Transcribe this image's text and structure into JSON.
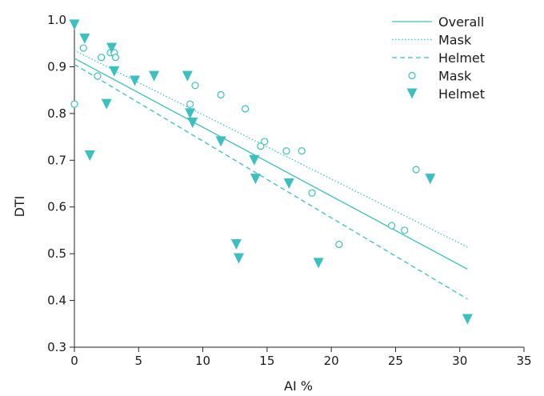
{
  "chart_data": {
    "type": "scatter",
    "xlabel": "AI %",
    "ylabel": "DTI",
    "xlim": [
      0,
      35
    ],
    "ylim": [
      0.3,
      1.0
    ],
    "xticks": [
      0,
      5,
      10,
      15,
      20,
      25,
      30,
      35
    ],
    "yticks": [
      0.3,
      0.4,
      0.5,
      0.6,
      0.7,
      0.8,
      0.9,
      1.0
    ],
    "xtick_labels": [
      "0",
      "5",
      "10",
      "15",
      "20",
      "25",
      "30",
      "35"
    ],
    "ytick_labels": [
      "0.3",
      "0.4",
      "0.5",
      "0.6",
      "0.7",
      "0.8",
      "0.9",
      "1.0"
    ],
    "grid": false,
    "legend_position": "top-right",
    "color": "#3cbfbf",
    "series": [
      {
        "name": "Mask",
        "marker": "open-circle",
        "points": [
          [
            0.0,
            0.82
          ],
          [
            0.7,
            0.94
          ],
          [
            1.8,
            0.88
          ],
          [
            2.1,
            0.92
          ],
          [
            2.8,
            0.93
          ],
          [
            3.1,
            0.93
          ],
          [
            3.2,
            0.92
          ],
          [
            9.0,
            0.82
          ],
          [
            9.4,
            0.86
          ],
          [
            11.4,
            0.84
          ],
          [
            13.3,
            0.81
          ],
          [
            14.5,
            0.73
          ],
          [
            14.8,
            0.74
          ],
          [
            16.5,
            0.72
          ],
          [
            17.7,
            0.72
          ],
          [
            18.5,
            0.63
          ],
          [
            20.6,
            0.52
          ],
          [
            24.7,
            0.56
          ],
          [
            25.7,
            0.55
          ],
          [
            26.6,
            0.68
          ]
        ]
      },
      {
        "name": "Helmet",
        "marker": "filled-triangle-down",
        "points": [
          [
            0.0,
            0.99
          ],
          [
            0.8,
            0.96
          ],
          [
            1.2,
            0.71
          ],
          [
            2.5,
            0.82
          ],
          [
            2.9,
            0.94
          ],
          [
            3.1,
            0.89
          ],
          [
            4.7,
            0.87
          ],
          [
            6.2,
            0.88
          ],
          [
            8.8,
            0.88
          ],
          [
            9.0,
            0.8
          ],
          [
            9.2,
            0.78
          ],
          [
            11.4,
            0.74
          ],
          [
            12.6,
            0.52
          ],
          [
            12.8,
            0.49
          ],
          [
            14.0,
            0.7
          ],
          [
            14.1,
            0.66
          ],
          [
            16.7,
            0.65
          ],
          [
            19.0,
            0.48
          ],
          [
            27.7,
            0.66
          ],
          [
            30.6,
            0.36
          ]
        ]
      }
    ],
    "fit_lines": [
      {
        "name": "Overall",
        "style": "solid",
        "x": [
          0,
          30.6
        ],
        "y": [
          0.918,
          0.467
        ]
      },
      {
        "name": "Mask",
        "style": "dotted",
        "x": [
          0,
          30.6
        ],
        "y": [
          0.935,
          0.514
        ]
      },
      {
        "name": "Helmet",
        "style": "dashed",
        "x": [
          0,
          30.6
        ],
        "y": [
          0.905,
          0.403
        ]
      }
    ],
    "legend": [
      {
        "label": "Overall",
        "kind": "line",
        "style": "solid"
      },
      {
        "label": "Mask",
        "kind": "line",
        "style": "dotted"
      },
      {
        "label": "Helmet",
        "kind": "line",
        "style": "dashed"
      },
      {
        "label": "Mask",
        "kind": "marker",
        "marker": "open-circle"
      },
      {
        "label": "Helmet",
        "kind": "marker",
        "marker": "filled-triangle-down"
      }
    ]
  }
}
